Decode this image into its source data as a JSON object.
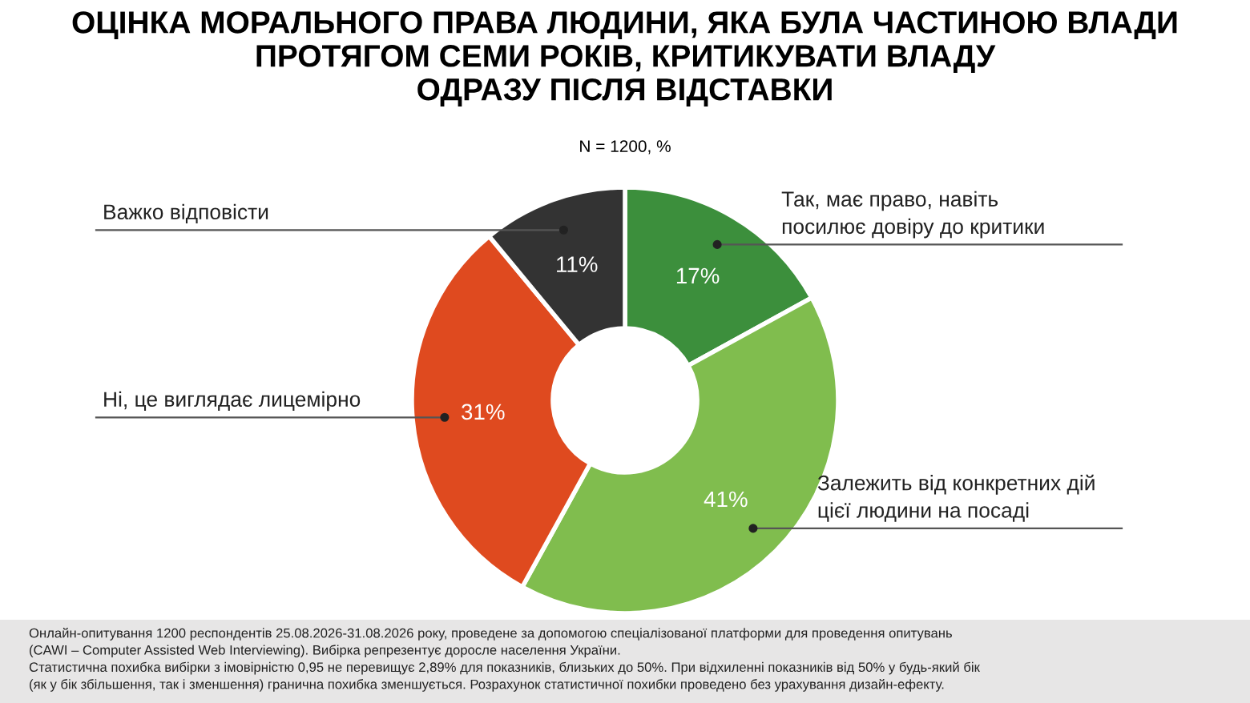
{
  "chart_data": {
    "type": "donut",
    "title": "ОЦІНКА МОРАЛЬНОГО ПРАВА ЛЮДИНИ, ЯКА БУЛА ЧАСТИНОЮ ВЛАДИ\nПРОТЯГОМ СЕМИ РОКІВ, КРИТИКУВАТИ ВЛАДУ\nОДРАЗУ ПІСЛЯ ВІДСТАВКИ",
    "subtitle": "N = 1200, %",
    "categories": [
      "Так, має право, навіть\nпосилює довіру до критики",
      "Залежить від конкретних дій\nцієї людини на посаді",
      "Ні, це виглядає лицемірно",
      "Важко відповісти"
    ],
    "values": [
      17,
      41,
      31,
      11
    ],
    "colors": [
      "#3c8f3c",
      "#80bd4e",
      "#df4a1f",
      "#333333"
    ],
    "value_labels": [
      "17%",
      "41%",
      "31%",
      "11%"
    ],
    "annotations": [
      "Онлайн-опитування 1200 респондентів 25.08.2026-31.08.2026 року, проведене за допомогою спеціалізованої платформи для проведення опитувань\n(CAWI – Computer Assisted Web Interviewing). Вибірка репрезентує доросле населення України.\nСтатистична похибка вибірки з імовірністю 0,95 не перевищує 2,89% для показників, близьких до 50%. При відхиленні показників від 50% у будь-який бік\n(як у бік збільшення, так і зменшення) гранична похибка зменшується. Розрахунок статистичної похибки проведено без урахування дизайн-ефекту."
    ]
  }
}
